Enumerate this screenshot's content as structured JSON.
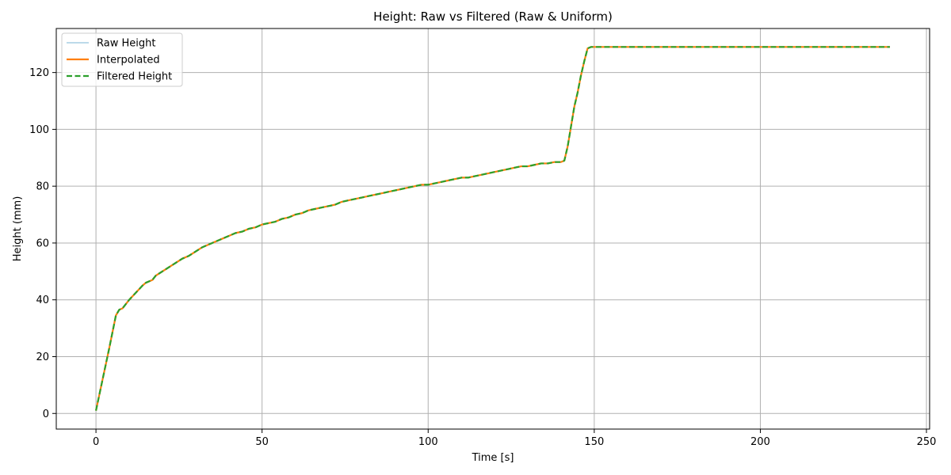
{
  "chart_data": {
    "type": "line",
    "title": "Height: Raw vs Filtered (Raw & Uniform)",
    "xlabel": "Time [s]",
    "ylabel": "Height (mm)",
    "xlim": [
      -11.95,
      250.95
    ],
    "ylim": [
      -5.5,
      135.5
    ],
    "xticks": [
      0,
      50,
      100,
      150,
      200,
      250
    ],
    "yticks": [
      0,
      20,
      40,
      60,
      80,
      100,
      120
    ],
    "grid": true,
    "legend_position": "top-left",
    "series": [
      {
        "name": "Raw Height",
        "color": "#a6cee3",
        "style": "solid",
        "x": [
          0,
          2,
          4,
          6,
          7,
          8,
          9,
          10,
          12,
          14,
          15,
          17,
          18,
          20,
          22,
          24,
          26,
          28,
          30,
          32,
          34,
          36,
          38,
          40,
          42,
          44,
          46,
          48,
          50,
          52,
          54,
          56,
          58,
          60,
          62,
          63,
          64,
          66,
          68,
          70,
          72,
          74,
          76,
          78,
          80,
          82,
          84,
          86,
          88,
          90,
          92,
          94,
          96,
          98,
          100,
          102,
          104,
          106,
          108,
          110,
          112,
          114,
          116,
          118,
          120,
          122,
          124,
          126,
          128,
          130,
          132,
          134,
          136,
          138,
          140,
          141,
          142,
          143,
          144,
          145,
          146,
          147,
          148,
          149,
          150,
          160,
          180,
          200,
          220,
          239
        ],
        "y": [
          1,
          12,
          23,
          34.5,
          36.5,
          37,
          38.5,
          40,
          42.5,
          45,
          46,
          47,
          48.5,
          50,
          51.5,
          53,
          54.5,
          55.5,
          57,
          58.5,
          59.5,
          60.5,
          61.5,
          62.5,
          63.5,
          64,
          65,
          65.5,
          66.5,
          67,
          67.5,
          68.5,
          69,
          70,
          70.5,
          71,
          71.5,
          72,
          72.5,
          73,
          73.5,
          74.5,
          75,
          75.5,
          76,
          76.5,
          77,
          77.5,
          78,
          78.5,
          79,
          79.5,
          80,
          80.5,
          80.5,
          81,
          81.5,
          82,
          82.5,
          83,
          83,
          83.5,
          84,
          84.5,
          85,
          85.5,
          86,
          86.5,
          87,
          87,
          87.5,
          88,
          88,
          88.5,
          88.5,
          89,
          94,
          101,
          108,
          113,
          119,
          124,
          128.5,
          129,
          129,
          129,
          129,
          129,
          129,
          129
        ]
      },
      {
        "name": "Interpolated",
        "color": "#ff7f0e",
        "style": "solid",
        "x": [
          0,
          2,
          4,
          6,
          7,
          8,
          9,
          10,
          12,
          14,
          15,
          17,
          18,
          20,
          22,
          24,
          26,
          28,
          30,
          32,
          34,
          36,
          38,
          40,
          42,
          44,
          46,
          48,
          50,
          52,
          54,
          56,
          58,
          60,
          62,
          63,
          64,
          66,
          68,
          70,
          72,
          74,
          76,
          78,
          80,
          82,
          84,
          86,
          88,
          90,
          92,
          94,
          96,
          98,
          100,
          102,
          104,
          106,
          108,
          110,
          112,
          114,
          116,
          118,
          120,
          122,
          124,
          126,
          128,
          130,
          132,
          134,
          136,
          138,
          140,
          141,
          142,
          143,
          144,
          145,
          146,
          147,
          148,
          149,
          150,
          160,
          180,
          200,
          220,
          239
        ],
        "y": [
          1,
          12,
          23,
          34.5,
          36.5,
          37,
          38.5,
          40,
          42.5,
          45,
          46,
          47,
          48.5,
          50,
          51.5,
          53,
          54.5,
          55.5,
          57,
          58.5,
          59.5,
          60.5,
          61.5,
          62.5,
          63.5,
          64,
          65,
          65.5,
          66.5,
          67,
          67.5,
          68.5,
          69,
          70,
          70.5,
          71,
          71.5,
          72,
          72.5,
          73,
          73.5,
          74.5,
          75,
          75.5,
          76,
          76.5,
          77,
          77.5,
          78,
          78.5,
          79,
          79.5,
          80,
          80.5,
          80.5,
          81,
          81.5,
          82,
          82.5,
          83,
          83,
          83.5,
          84,
          84.5,
          85,
          85.5,
          86,
          86.5,
          87,
          87,
          87.5,
          88,
          88,
          88.5,
          88.5,
          89,
          94,
          101,
          108,
          113,
          119,
          124,
          128.5,
          129,
          129,
          129,
          129,
          129,
          129,
          129
        ]
      },
      {
        "name": "Filtered Height",
        "color": "#2ca02c",
        "style": "dashed",
        "x": [
          0,
          2,
          4,
          6,
          7,
          8,
          9,
          10,
          12,
          14,
          15,
          17,
          18,
          20,
          22,
          24,
          26,
          28,
          30,
          32,
          34,
          36,
          38,
          40,
          42,
          44,
          46,
          48,
          50,
          52,
          54,
          56,
          58,
          60,
          62,
          63,
          64,
          66,
          68,
          70,
          72,
          74,
          76,
          78,
          80,
          82,
          84,
          86,
          88,
          90,
          92,
          94,
          96,
          98,
          100,
          102,
          104,
          106,
          108,
          110,
          112,
          114,
          116,
          118,
          120,
          122,
          124,
          126,
          128,
          130,
          132,
          134,
          136,
          138,
          140,
          141,
          142,
          143,
          144,
          145,
          146,
          147,
          148,
          149,
          150,
          160,
          180,
          200,
          220,
          239
        ],
        "y": [
          1,
          12,
          23,
          34.5,
          36.5,
          37,
          38.5,
          40,
          42.5,
          45,
          46,
          47,
          48.5,
          50,
          51.5,
          53,
          54.5,
          55.5,
          57,
          58.5,
          59.5,
          60.5,
          61.5,
          62.5,
          63.5,
          64,
          65,
          65.5,
          66.5,
          67,
          67.5,
          68.5,
          69,
          70,
          70.5,
          71,
          71.5,
          72,
          72.5,
          73,
          73.5,
          74.5,
          75,
          75.5,
          76,
          76.5,
          77,
          77.5,
          78,
          78.5,
          79,
          79.5,
          80,
          80.5,
          80.5,
          81,
          81.5,
          82,
          82.5,
          83,
          83,
          83.5,
          84,
          84.5,
          85,
          85.5,
          86,
          86.5,
          87,
          87,
          87.5,
          88,
          88,
          88.5,
          88.5,
          89,
          94,
          101,
          108,
          113,
          119,
          124,
          128.5,
          129,
          129,
          129,
          129,
          129,
          129,
          129
        ]
      }
    ]
  }
}
